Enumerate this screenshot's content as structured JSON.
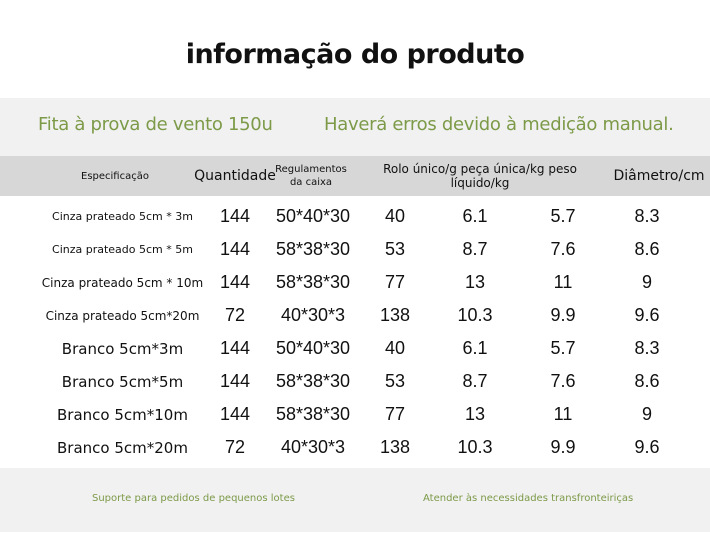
{
  "title": "informação do produto",
  "subtitle_left": "Fita à prova de vento 150u",
  "subtitle_right": "Haverá erros devido à medição manual.",
  "headers": {
    "spec": "Especificação",
    "qty": "Quantidade",
    "box_line1": "Regulamentos",
    "box_line2": "da caixa",
    "weights": "Rolo único/g peça única/kg peso líquido/kg",
    "diameter": "Diâmetro/cm"
  },
  "rows": [
    {
      "spec": "Cinza prateado 5cm * 3m",
      "qty": "144",
      "box": "50*40*30",
      "roll_g": "40",
      "piece_kg": "6.1",
      "net_kg": "5.7",
      "diameter": "8.3"
    },
    {
      "spec": "Cinza prateado 5cm * 5m",
      "qty": "144",
      "box": "58*38*30",
      "roll_g": "53",
      "piece_kg": "8.7",
      "net_kg": "7.6",
      "diameter": "8.6"
    },
    {
      "spec": "Cinza prateado 5cm * 10m",
      "qty": "144",
      "box": "58*38*30",
      "roll_g": "77",
      "piece_kg": "13",
      "net_kg": "11",
      "diameter": "9"
    },
    {
      "spec": "Cinza prateado 5cm*20m",
      "qty": "72",
      "box": "40*30*3",
      "roll_g": "138",
      "piece_kg": "10.3",
      "net_kg": "9.9",
      "diameter": "9.6"
    },
    {
      "spec": "Branco 5cm*3m",
      "qty": "144",
      "box": "50*40*30",
      "roll_g": "40",
      "piece_kg": "6.1",
      "net_kg": "5.7",
      "diameter": "8.3"
    },
    {
      "spec": "Branco 5cm*5m",
      "qty": "144",
      "box": "58*38*30",
      "roll_g": "53",
      "piece_kg": "8.7",
      "net_kg": "7.6",
      "diameter": "8.6"
    },
    {
      "spec": "Branco 5cm*10m",
      "qty": "144",
      "box": "58*38*30",
      "roll_g": "77",
      "piece_kg": "13",
      "net_kg": "11",
      "diameter": "9"
    },
    {
      "spec": "Branco 5cm*20m",
      "qty": "72",
      "box": "40*30*3",
      "roll_g": "138",
      "piece_kg": "10.3",
      "net_kg": "9.9",
      "diameter": "9.6"
    }
  ],
  "footer_left": "Suporte para pedidos de pequenos lotes",
  "footer_right": "Atender às necessidades transfronteiriças",
  "colors": {
    "accent_green": "#7c9a48",
    "band_light": "#f1f1f1",
    "header_gray": "#d7d7d7"
  }
}
